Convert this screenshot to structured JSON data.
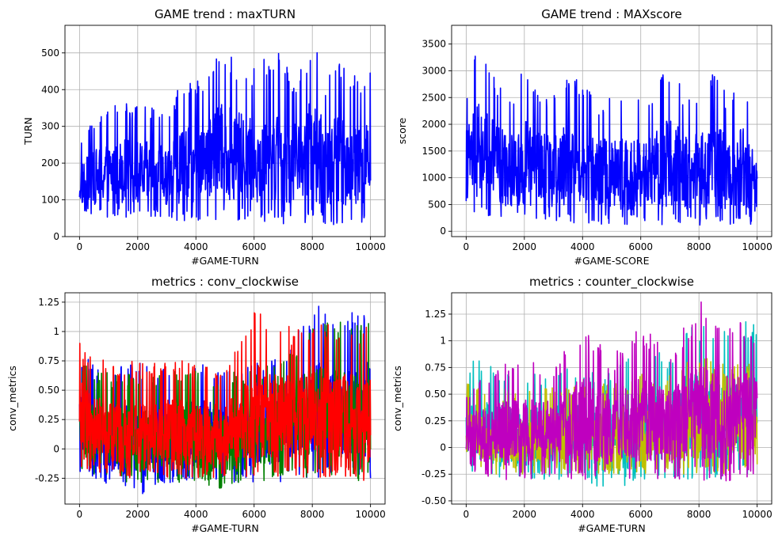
{
  "chart_data": [
    {
      "type": "line",
      "title": "GAME trend : maxTURN",
      "xlabel": "#GAME-TURN",
      "ylabel": "TURN",
      "xlim": [
        -500,
        10500
      ],
      "ylim": [
        0,
        575
      ],
      "xticks": [
        0,
        2000,
        4000,
        6000,
        8000,
        10000
      ],
      "yticks": [
        0,
        100,
        200,
        300,
        400,
        500
      ],
      "grid": true,
      "series": [
        {
          "color": "#0000ff",
          "x": [
            0,
            500,
            1000,
            1500,
            2000,
            2500,
            3000,
            3500,
            4000,
            4500,
            5000,
            5500,
            6000,
            6500,
            7000,
            7500,
            8000,
            8500,
            9000,
            9500,
            10000
          ],
          "y_low": [
            60,
            55,
            50,
            55,
            45,
            50,
            45,
            40,
            40,
            45,
            40,
            45,
            40,
            40,
            35,
            40,
            35,
            35,
            30,
            30,
            40
          ],
          "y_high": [
            265,
            325,
            360,
            370,
            365,
            360,
            340,
            430,
            415,
            490,
            530,
            480,
            470,
            510,
            500,
            430,
            550,
            430,
            490,
            450,
            450
          ]
        }
      ]
    },
    {
      "type": "line",
      "title": "GAME trend : MAXscore",
      "xlabel": "#GAME-SCORE",
      "ylabel": "score",
      "xlim": [
        -500,
        10500
      ],
      "ylim": [
        -100,
        3850
      ],
      "xticks": [
        0,
        2000,
        4000,
        6000,
        8000,
        10000
      ],
      "yticks": [
        0,
        500,
        1000,
        1500,
        2000,
        2500,
        3000,
        3500
      ],
      "grid": true,
      "series": [
        {
          "color": "#0000ff",
          "x": [
            0,
            500,
            1000,
            1500,
            2000,
            2500,
            3000,
            3500,
            4000,
            4500,
            5000,
            5500,
            6000,
            6500,
            7000,
            7500,
            8000,
            8500,
            9000,
            9500,
            10000
          ],
          "y_low": [
            250,
            200,
            150,
            150,
            150,
            150,
            150,
            150,
            150,
            120,
            120,
            120,
            120,
            100,
            100,
            100,
            100,
            100,
            100,
            100,
            150
          ],
          "y_high": [
            2800,
            3650,
            3000,
            2600,
            3100,
            2700,
            2600,
            3000,
            2800,
            2500,
            2600,
            2500,
            2500,
            2800,
            3100,
            2700,
            2800,
            3000,
            2600,
            3000,
            1900
          ]
        }
      ]
    },
    {
      "type": "line",
      "title": "metrics : conv_clockwise",
      "xlabel": "#GAME-TURN",
      "ylabel": "conv_metrics",
      "xlim": [
        -500,
        10500
      ],
      "ylim": [
        -0.47,
        1.33
      ],
      "xticks": [
        0,
        2000,
        4000,
        6000,
        8000,
        10000
      ],
      "yticks": [
        -0.25,
        0.0,
        0.25,
        0.5,
        0.75,
        1.0,
        1.25
      ],
      "grid": true,
      "series": [
        {
          "color": "#0000ff",
          "x": [
            0,
            1000,
            2000,
            3000,
            4000,
            5000,
            6000,
            7000,
            8000,
            9000,
            10000
          ],
          "y_low": [
            -0.22,
            -0.3,
            -0.42,
            -0.3,
            -0.3,
            -0.3,
            -0.28,
            -0.28,
            -0.25,
            -0.25,
            -0.25
          ],
          "y_high": [
            0.85,
            0.7,
            0.75,
            0.7,
            0.8,
            0.7,
            0.75,
            0.85,
            1.25,
            1.15,
            1.25
          ]
        },
        {
          "color": "#008000",
          "x": [
            0,
            1000,
            2000,
            3000,
            4000,
            5000,
            6000,
            7000,
            8000,
            9000,
            10000
          ],
          "y_low": [
            -0.2,
            -0.25,
            -0.3,
            -0.28,
            -0.3,
            -0.35,
            -0.28,
            -0.25,
            -0.25,
            -0.25,
            -0.3
          ],
          "y_high": [
            0.75,
            0.65,
            0.65,
            0.65,
            0.7,
            0.65,
            0.7,
            0.75,
            1.2,
            1.1,
            1.1
          ]
        },
        {
          "color": "#ff0000",
          "x": [
            0,
            1000,
            2000,
            3000,
            4000,
            5000,
            6000,
            7000,
            8000,
            9000,
            10000
          ],
          "y_low": [
            -0.15,
            -0.25,
            -0.25,
            -0.25,
            -0.25,
            -0.25,
            -0.25,
            -0.25,
            -0.25,
            -0.25,
            -0.28
          ],
          "y_high": [
            0.93,
            0.75,
            0.75,
            0.75,
            0.75,
            0.7,
            1.23,
            1.05,
            1.1,
            1.1,
            1.05
          ]
        }
      ]
    },
    {
      "type": "line",
      "title": "metrics : counter_clockwise",
      "xlabel": "#GAME-TURN",
      "ylabel": "conv_metrics",
      "xlim": [
        -500,
        10500
      ],
      "ylim": [
        -0.53,
        1.45
      ],
      "xticks": [
        0,
        2000,
        4000,
        6000,
        8000,
        10000
      ],
      "yticks": [
        -0.5,
        -0.25,
        0.0,
        0.25,
        0.5,
        0.75,
        1.0,
        1.25
      ],
      "grid": true,
      "series": [
        {
          "color": "#00bfbf",
          "x": [
            0,
            1000,
            2000,
            3000,
            4000,
            5000,
            6000,
            7000,
            8000,
            9000,
            10000
          ],
          "y_low": [
            -0.2,
            -0.3,
            -0.3,
            -0.3,
            -0.3,
            -0.43,
            -0.3,
            -0.3,
            -0.3,
            -0.3,
            -0.25
          ],
          "y_high": [
            0.87,
            0.75,
            0.7,
            0.75,
            0.75,
            0.75,
            0.95,
            0.9,
            1.23,
            1.1,
            1.23
          ]
        },
        {
          "color": "#bfbf00",
          "x": [
            0,
            1000,
            2000,
            3000,
            4000,
            5000,
            6000,
            7000,
            8000,
            9000,
            10000
          ],
          "y_low": [
            -0.15,
            -0.25,
            -0.25,
            -0.25,
            -0.25,
            -0.25,
            -0.25,
            -0.25,
            -0.25,
            -0.25,
            -0.2
          ],
          "y_high": [
            0.6,
            0.55,
            0.55,
            0.6,
            0.6,
            0.6,
            0.7,
            0.7,
            0.9,
            0.8,
            0.8
          ]
        },
        {
          "color": "#bf00bf",
          "x": [
            0,
            1000,
            2000,
            3000,
            4000,
            5000,
            6000,
            7000,
            8000,
            9000,
            10000
          ],
          "y_low": [
            -0.2,
            -0.3,
            -0.3,
            -0.3,
            -0.3,
            -0.3,
            -0.3,
            -0.3,
            -0.3,
            -0.35,
            -0.25
          ],
          "y_high": [
            0.55,
            0.8,
            0.85,
            0.8,
            1.15,
            0.85,
            1.15,
            0.95,
            1.38,
            1.2,
            1.18
          ]
        }
      ]
    }
  ]
}
